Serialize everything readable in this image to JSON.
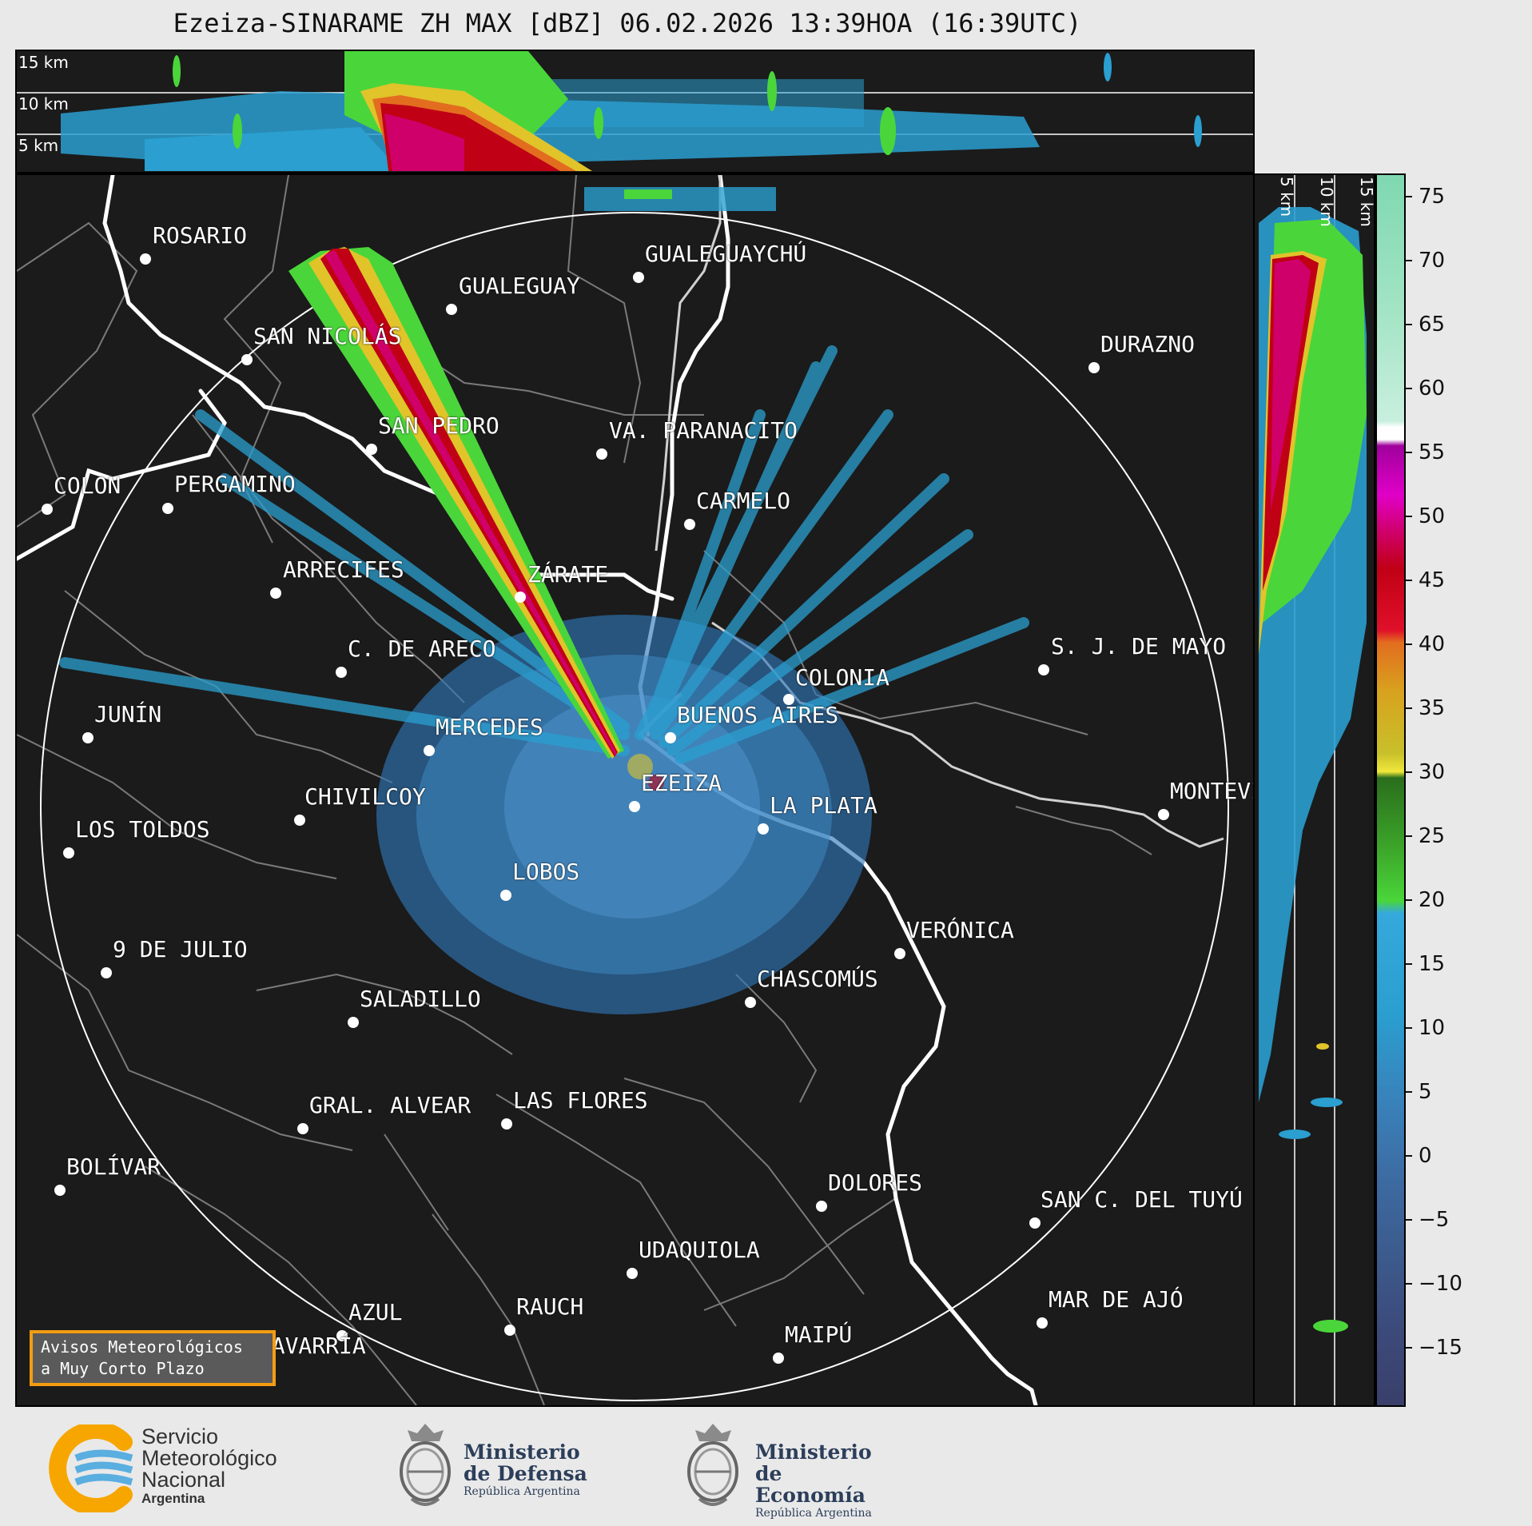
{
  "title": "Ezeiza-SINARAME ZH MAX [dBZ] 06.02.2026 13:39HOA (16:39UTC)",
  "top_panel": {
    "altitude_labels": [
      "15 km",
      "10 km",
      "5 km"
    ]
  },
  "side_panel": {
    "altitude_labels": [
      "5 km",
      "10 km",
      "15 km"
    ]
  },
  "colorbar": {
    "tick_labels": [
      "75",
      "70",
      "65",
      "60",
      "55",
      "50",
      "45",
      "40",
      "35",
      "30",
      "25",
      "20",
      "15",
      "10",
      "5",
      "0",
      "−5",
      "−10",
      "−15"
    ],
    "range": [
      -20,
      77
    ]
  },
  "cities": [
    {
      "name": "ROSARIO"
    },
    {
      "name": "GUALEGUAYCHÚ"
    },
    {
      "name": "GUALEGUAY"
    },
    {
      "name": "SAN NICOLÁS"
    },
    {
      "name": "DURAZNO"
    },
    {
      "name": "SAN PEDRO"
    },
    {
      "name": "VA. PARANACITO"
    },
    {
      "name": "COLON"
    },
    {
      "name": "PERGAMINO"
    },
    {
      "name": "CARMELO"
    },
    {
      "name": "ARRECIFES"
    },
    {
      "name": "ZÁRATE"
    },
    {
      "name": "S. J. DE MAYO"
    },
    {
      "name": "C. DE ARECO"
    },
    {
      "name": "COLONIA"
    },
    {
      "name": "JUNÍN"
    },
    {
      "name": "BUENOS AIRES"
    },
    {
      "name": "MERCEDES"
    },
    {
      "name": "EZEIZA"
    },
    {
      "name": "MONTEVIDEO"
    },
    {
      "name": "CHIVILCOY"
    },
    {
      "name": "LA PLATA"
    },
    {
      "name": "LOS TOLDOS"
    },
    {
      "name": "LOBOS"
    },
    {
      "name": "VERÓNICA"
    },
    {
      "name": "9 DE JULIO"
    },
    {
      "name": "CHASCOMÚS"
    },
    {
      "name": "SALADILLO"
    },
    {
      "name": "GRAL. ALVEAR"
    },
    {
      "name": "LAS FLORES"
    },
    {
      "name": "BOLÍVAR"
    },
    {
      "name": "DOLORES"
    },
    {
      "name": "SAN C. DEL TUYÚ"
    },
    {
      "name": "UDAQUIOLA"
    },
    {
      "name": "MAR DE AJÓ"
    },
    {
      "name": "AZUL"
    },
    {
      "name": "RAUCH"
    },
    {
      "name": "OLAVARRÍA"
    },
    {
      "name": "MAIPÚ"
    }
  ],
  "avisos": {
    "line1": "Avisos Meteorológicos",
    "line2": "a Muy Corto Plazo"
  },
  "footer": {
    "smn": {
      "line1": "Servicio",
      "line2": "Meteorológico",
      "line3": "Nacional",
      "line4": "Argentina"
    },
    "defensa": {
      "line1": "Ministerio",
      "line2": "de Defensa",
      "line3": "República Argentina"
    },
    "economia": {
      "line1": "Ministerio",
      "line2": "de Economía",
      "line3": "República Argentina"
    }
  }
}
